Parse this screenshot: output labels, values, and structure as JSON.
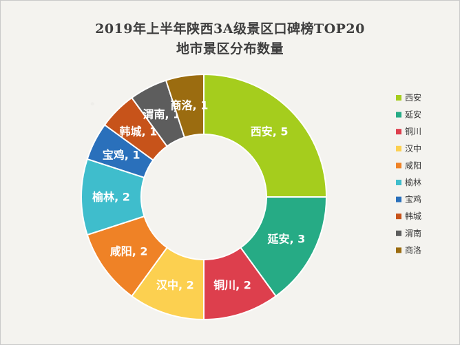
{
  "chart_data": {
    "type": "pie",
    "variant": "donut",
    "title_line1": "2019年上半年陕西3A级景区口碑榜TOP20",
    "title_line2": "地市景区分布数量",
    "legend_position": "right",
    "categories": [
      "西安",
      "延安",
      "铜川",
      "汉中",
      "咸阳",
      "榆林",
      "宝鸡",
      "韩城",
      "渭南",
      "商洛"
    ],
    "values": [
      5,
      3,
      2,
      2,
      2,
      2,
      1,
      1,
      1,
      1
    ],
    "colors": [
      "#a5cd1d",
      "#26ab85",
      "#dd3f4d",
      "#fcd050",
      "#ef8226",
      "#3fbdcc",
      "#2a70bb",
      "#c7531a",
      "#5d5d5d",
      "#9b6c10"
    ],
    "data_labels": [
      "西安, 5",
      "延安, 3",
      "铜川, 2",
      "汉中, 2",
      "咸阳, 2",
      "榆林, 2",
      "宝鸡, 1",
      "韩城, 1",
      "渭南, 1",
      "商洛, 1"
    ]
  }
}
